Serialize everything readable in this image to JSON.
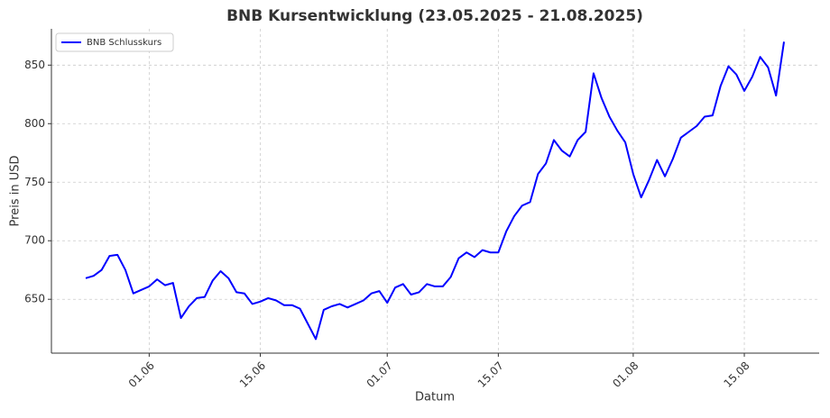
{
  "chart_data": {
    "type": "line",
    "title": "BNB Kursentwicklung (23.05.2025 - 21.08.2025)",
    "x_label": "Datum",
    "y_label": "Preis in USD",
    "x": [
      "24.05",
      "25.05",
      "26.05",
      "27.05",
      "28.05",
      "29.05",
      "30.05",
      "31.05",
      "01.06",
      "02.06",
      "03.06",
      "04.06",
      "05.06",
      "06.06",
      "07.06",
      "08.06",
      "09.06",
      "10.06",
      "11.06",
      "12.06",
      "13.06",
      "14.06",
      "15.06",
      "16.06",
      "17.06",
      "18.06",
      "19.06",
      "20.06",
      "21.06",
      "22.06",
      "23.06",
      "24.06",
      "25.06",
      "26.06",
      "27.06",
      "28.06",
      "29.06",
      "30.06",
      "01.07",
      "02.07",
      "03.07",
      "04.07",
      "05.07",
      "06.07",
      "07.07",
      "08.07",
      "09.07",
      "10.07",
      "11.07",
      "12.07",
      "13.07",
      "14.07",
      "15.07",
      "16.07",
      "17.07",
      "18.07",
      "19.07",
      "20.07",
      "21.07",
      "22.07",
      "23.07",
      "24.07",
      "25.07",
      "26.07",
      "27.07",
      "28.07",
      "29.07",
      "30.07",
      "31.07",
      "01.08",
      "02.08",
      "03.08",
      "04.08",
      "05.08",
      "06.08",
      "07.08",
      "08.08",
      "09.08",
      "10.08",
      "11.08",
      "12.08",
      "13.08",
      "14.08",
      "15.08",
      "16.08",
      "17.08",
      "18.08",
      "19.08",
      "20.08"
    ],
    "series": [
      {
        "name": "BNB Schlusskurs",
        "color": "#0000ff",
        "values": [
          668,
          670,
          675,
          687,
          688,
          675,
          655,
          658,
          661,
          667,
          662,
          664,
          634,
          644,
          651,
          652,
          666,
          674,
          668,
          656,
          655,
          646,
          648,
          651,
          649,
          645,
          645,
          642,
          629,
          616,
          641,
          644,
          646,
          643,
          646,
          649,
          655,
          657,
          647,
          660,
          663,
          654,
          656,
          663,
          661,
          661,
          669,
          685,
          690,
          686,
          692,
          690,
          690,
          708,
          721,
          730,
          733,
          757,
          766,
          786,
          777,
          772,
          786,
          793,
          843,
          822,
          806,
          794,
          784,
          757,
          737,
          752,
          769,
          755,
          770,
          788,
          793,
          798,
          806,
          807,
          832,
          849,
          842,
          828,
          840,
          857,
          848,
          824,
          870
        ]
      }
    ],
    "xticks": [
      "01.06",
      "15.06",
      "01.07",
      "15.07",
      "01.08",
      "15.08"
    ],
    "ylim": [
      604,
      881
    ],
    "yticks": [
      650,
      700,
      750,
      800,
      850
    ],
    "grid": true,
    "legend": "upper left"
  }
}
